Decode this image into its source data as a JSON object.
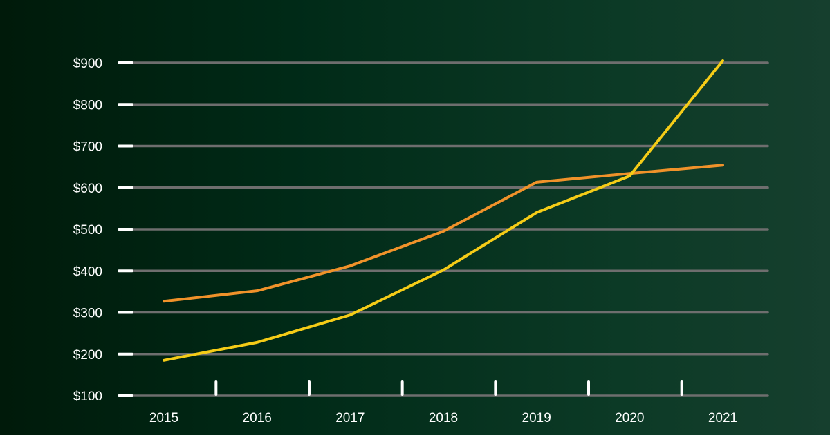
{
  "chart_data": {
    "type": "line",
    "title": "",
    "xlabel": "",
    "ylabel": "",
    "categories": [
      "2015",
      "2016",
      "2017",
      "2018",
      "2019",
      "2020",
      "2021"
    ],
    "yticks": [
      100,
      200,
      300,
      400,
      500,
      600,
      700,
      800,
      900
    ],
    "ytick_labels": [
      "$100",
      "$200",
      "$300",
      "$400",
      "$500",
      "$600",
      "$700",
      "$800",
      "$900"
    ],
    "ylim": [
      100,
      900
    ],
    "grid": true,
    "series": [
      {
        "color": "#f0922a",
        "values": [
          327,
          352,
          412,
          495,
          613,
          634,
          654
        ]
      },
      {
        "color": "#f5cc17",
        "values": [
          185,
          228,
          294,
          402,
          540,
          628,
          905
        ]
      }
    ],
    "colors": {
      "grid": "#6e6e6e",
      "axis_tick": "#ffffff",
      "text": "#ffffff"
    }
  }
}
